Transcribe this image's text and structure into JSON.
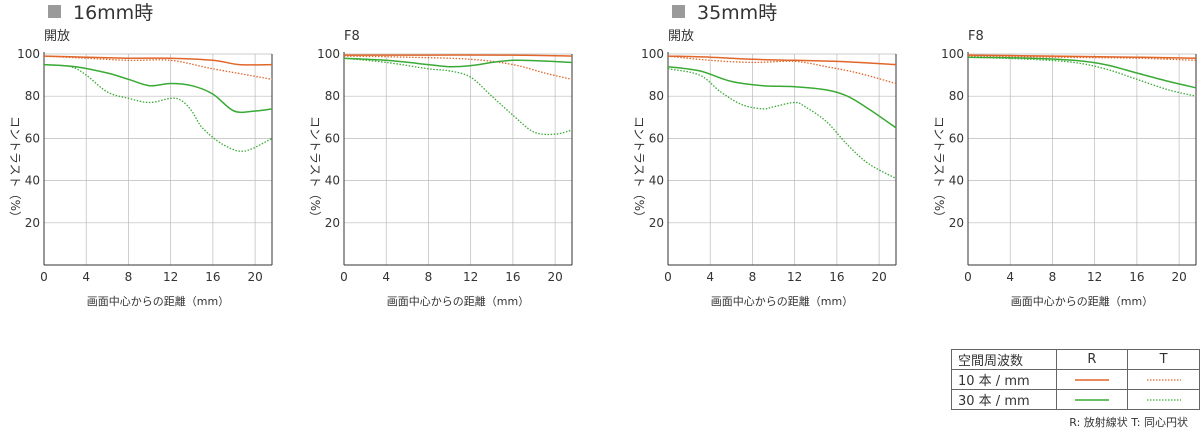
{
  "sections": [
    {
      "title": "16mm時"
    },
    {
      "title": "35mm時"
    }
  ],
  "chart_data": [
    {
      "type": "line",
      "title": "開放",
      "xlabel": "画面中心からの距離（mm）",
      "ylabel": "コントラスト（%）",
      "xlim": [
        0,
        21.6
      ],
      "ylim": [
        0,
        100
      ],
      "xticks": [
        0,
        4,
        8,
        12,
        16,
        20
      ],
      "yticks": [
        20,
        40,
        60,
        80,
        100
      ],
      "series": [
        {
          "key": "R10",
          "points": [
            [
              0,
              99
            ],
            [
              4,
              98.5
            ],
            [
              8,
              98
            ],
            [
              12,
              98
            ],
            [
              16,
              97
            ],
            [
              18.5,
              95
            ],
            [
              21.6,
              95
            ]
          ]
        },
        {
          "key": "T10",
          "points": [
            [
              0,
              99
            ],
            [
              4,
              98
            ],
            [
              8,
              97
            ],
            [
              12,
              97
            ],
            [
              16,
              93
            ],
            [
              21.6,
              88
            ]
          ]
        },
        {
          "key": "R30",
          "points": [
            [
              0,
              95
            ],
            [
              3,
              94
            ],
            [
              6,
              91
            ],
            [
              8,
              88
            ],
            [
              10,
              85
            ],
            [
              12,
              86
            ],
            [
              14,
              85
            ],
            [
              16,
              81
            ],
            [
              18,
              73
            ],
            [
              20,
              73
            ],
            [
              21.6,
              74
            ]
          ]
        },
        {
          "key": "T30",
          "points": [
            [
              0,
              95
            ],
            [
              2.5,
              94
            ],
            [
              4,
              90
            ],
            [
              6,
              82
            ],
            [
              8,
              79
            ],
            [
              10,
              77
            ],
            [
              12,
              79
            ],
            [
              13,
              78
            ],
            [
              14,
              73
            ],
            [
              15,
              65
            ],
            [
              17,
              57
            ],
            [
              19,
              54
            ],
            [
              21.6,
              60
            ]
          ]
        }
      ]
    },
    {
      "type": "line",
      "title": "F8",
      "xlabel": "画面中心からの距離（mm）",
      "ylabel": "コントラスト（%）",
      "xlim": [
        0,
        21.6
      ],
      "ylim": [
        0,
        100
      ],
      "xticks": [
        0,
        4,
        8,
        12,
        16,
        20
      ],
      "yticks": [
        20,
        40,
        60,
        80,
        100
      ],
      "series": [
        {
          "key": "R10",
          "points": [
            [
              0,
              99.5
            ],
            [
              8,
              99.5
            ],
            [
              16,
              99.5
            ],
            [
              21.6,
              99
            ]
          ]
        },
        {
          "key": "T10",
          "points": [
            [
              0,
              99
            ],
            [
              6,
              98.5
            ],
            [
              12,
              97.5
            ],
            [
              16,
              95
            ],
            [
              19,
              91
            ],
            [
              21.6,
              88
            ]
          ]
        },
        {
          "key": "R30",
          "points": [
            [
              0,
              98
            ],
            [
              4,
              97
            ],
            [
              8,
              95
            ],
            [
              10,
              94
            ],
            [
              12,
              94.5
            ],
            [
              16,
              97
            ],
            [
              21.6,
              96
            ]
          ]
        },
        {
          "key": "T30",
          "points": [
            [
              0,
              98
            ],
            [
              4,
              96
            ],
            [
              8,
              93
            ],
            [
              10,
              92
            ],
            [
              12,
              89
            ],
            [
              14,
              80
            ],
            [
              16,
              71
            ],
            [
              18,
              63
            ],
            [
              20,
              62
            ],
            [
              21.6,
              64
            ]
          ]
        }
      ]
    },
    {
      "type": "line",
      "title": "開放",
      "xlabel": "画面中心からの距離（mm）",
      "ylabel": "コントラスト（%）",
      "xlim": [
        0,
        21.6
      ],
      "ylim": [
        0,
        100
      ],
      "xticks": [
        0,
        4,
        8,
        12,
        16,
        20
      ],
      "yticks": [
        20,
        40,
        60,
        80,
        100
      ],
      "series": [
        {
          "key": "R10",
          "points": [
            [
              0,
              99
            ],
            [
              4,
              98.5
            ],
            [
              8,
              97.5
            ],
            [
              12,
              97
            ],
            [
              16,
              96.5
            ],
            [
              18,
              96
            ],
            [
              21.6,
              95
            ]
          ]
        },
        {
          "key": "T10",
          "points": [
            [
              0,
              99
            ],
            [
              4,
              97
            ],
            [
              8,
              96
            ],
            [
              12,
              96.5
            ],
            [
              15,
              94
            ],
            [
              18,
              91
            ],
            [
              21.6,
              86
            ]
          ]
        },
        {
          "key": "R30",
          "points": [
            [
              0,
              94
            ],
            [
              3,
              92
            ],
            [
              6,
              87
            ],
            [
              9,
              85
            ],
            [
              12,
              84.5
            ],
            [
              15,
              83
            ],
            [
              17,
              80
            ],
            [
              19,
              74
            ],
            [
              21.6,
              65
            ]
          ]
        },
        {
          "key": "T30",
          "points": [
            [
              0,
              93
            ],
            [
              3,
              90
            ],
            [
              5,
              82
            ],
            [
              7,
              76
            ],
            [
              9,
              74
            ],
            [
              10,
              75
            ],
            [
              12,
              77
            ],
            [
              13,
              75
            ],
            [
              15,
              68
            ],
            [
              17,
              57
            ],
            [
              19,
              48
            ],
            [
              21.6,
              41
            ]
          ]
        }
      ]
    },
    {
      "type": "line",
      "title": "F8",
      "xlabel": "画面中心からの距離（mm）",
      "ylabel": "コントラスト（%）",
      "xlim": [
        0,
        21.6
      ],
      "ylim": [
        0,
        100
      ],
      "xticks": [
        0,
        4,
        8,
        12,
        16,
        20
      ],
      "yticks": [
        20,
        40,
        60,
        80,
        100
      ],
      "series": [
        {
          "key": "R10",
          "points": [
            [
              0,
              99.5
            ],
            [
              8,
              99
            ],
            [
              16,
              98.5
            ],
            [
              21.6,
              98
            ]
          ]
        },
        {
          "key": "T10",
          "points": [
            [
              0,
              99
            ],
            [
              8,
              98.5
            ],
            [
              16,
              98
            ],
            [
              21.6,
              97
            ]
          ]
        },
        {
          "key": "R30",
          "points": [
            [
              0,
              98.5
            ],
            [
              6,
              98
            ],
            [
              10,
              97
            ],
            [
              13,
              95
            ],
            [
              16,
              91
            ],
            [
              19,
              87
            ],
            [
              21.6,
              84
            ]
          ]
        },
        {
          "key": "T30",
          "points": [
            [
              0,
              98.5
            ],
            [
              6,
              97.5
            ],
            [
              10,
              96
            ],
            [
              13,
              93
            ],
            [
              16,
              88
            ],
            [
              19,
              83
            ],
            [
              21.6,
              80
            ]
          ]
        }
      ]
    }
  ],
  "legend": {
    "header": "空間周波数",
    "col_r": "R",
    "col_t": "T",
    "row_10": "10 本 / mm",
    "row_30": "30 本 / mm"
  },
  "footnote": "R: 放射線状  T: 同心円状",
  "colors": {
    "orange": "#e0662a",
    "green": "#3aaa35",
    "axis": "#333333",
    "grid": "#bbbbbb",
    "section_square": "#9a9a9a"
  }
}
